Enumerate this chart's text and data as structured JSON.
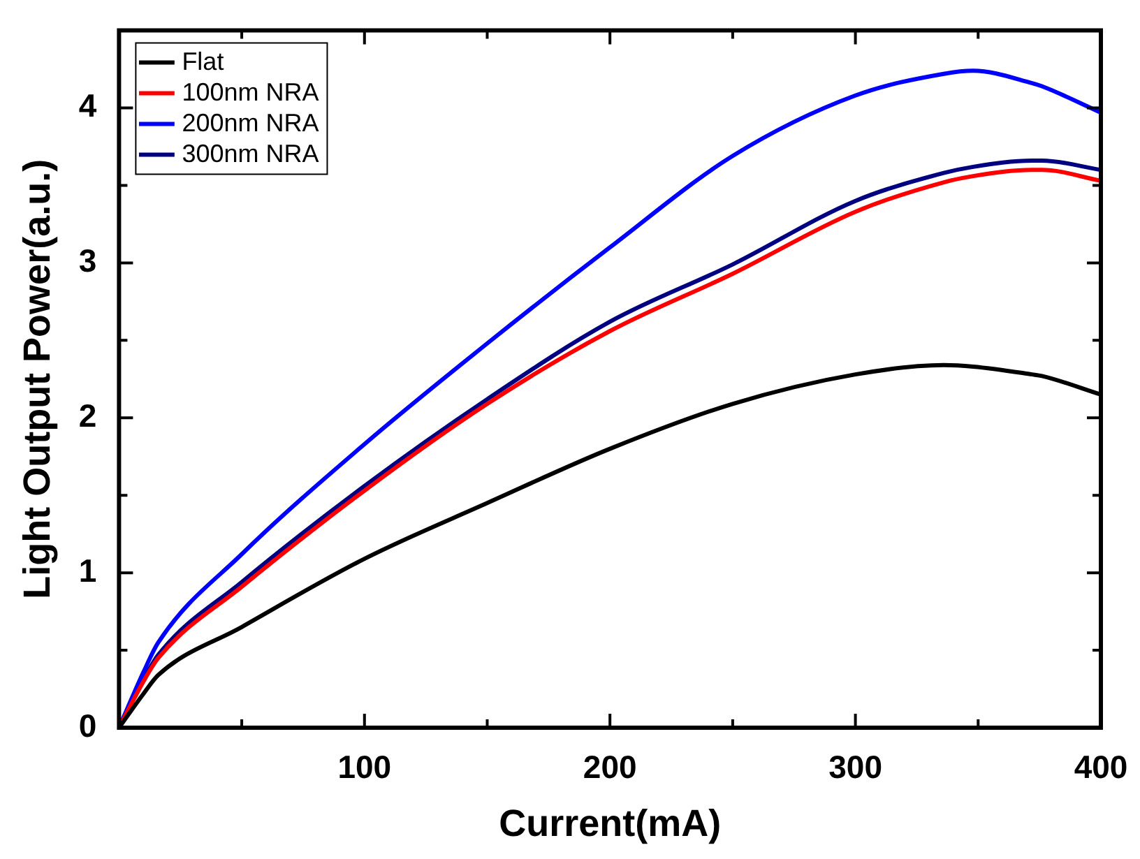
{
  "chart_data": {
    "type": "line",
    "xlabel": "Current(mA)",
    "ylabel": "Light Output Power(a.u.)",
    "x": [
      0,
      10,
      16,
      50,
      100,
      150,
      200,
      250,
      300,
      336,
      348,
      372,
      376,
      400
    ],
    "series": [
      {
        "name": "Flat",
        "color": "#000000",
        "values": [
          0,
          0.22,
          0.34,
          0.65,
          1.09,
          1.45,
          1.8,
          2.09,
          2.28,
          2.34,
          2.33,
          2.28,
          2.27,
          2.15
        ]
      },
      {
        "name": "100nm NRA",
        "color": "#ff0000",
        "values": [
          0,
          0.3,
          0.45,
          0.91,
          1.53,
          2.09,
          2.56,
          2.93,
          3.33,
          3.52,
          3.56,
          3.6,
          3.6,
          3.53
        ]
      },
      {
        "name": "200nm NRA",
        "color": "#0000ff",
        "values": [
          0,
          0.36,
          0.55,
          1.12,
          1.83,
          2.48,
          3.1,
          3.69,
          4.08,
          4.22,
          4.24,
          4.16,
          4.14,
          3.97
        ]
      },
      {
        "name": "300nm NRA",
        "color": "#000080",
        "values": [
          0,
          0.31,
          0.47,
          0.94,
          1.56,
          2.12,
          2.62,
          2.99,
          3.4,
          3.58,
          3.62,
          3.66,
          3.66,
          3.6
        ]
      }
    ],
    "xlim": [
      0,
      400
    ],
    "xticks": [
      {
        "value": 0,
        "label": null
      },
      {
        "value": 50,
        "label": null
      },
      100,
      {
        "value": 150,
        "label": null
      },
      200,
      {
        "value": 250,
        "label": null
      },
      300,
      {
        "value": 350,
        "label": null
      },
      400
    ],
    "ylim": [
      0,
      4.5
    ],
    "yticks": [
      0,
      {
        "value": 0.5,
        "label": null
      },
      1,
      {
        "value": 1.5,
        "label": null
      },
      2,
      {
        "value": 2.5,
        "label": null
      },
      3,
      {
        "value": 3.5,
        "label": null
      },
      4
    ],
    "legend": "top left",
    "grid": false,
    "marker": "none",
    "line_style": "solid"
  }
}
